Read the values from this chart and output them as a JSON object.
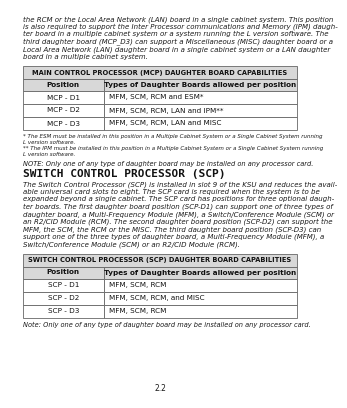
{
  "bg_color": "#ffffff",
  "text_color": "#1a1a1a",
  "body_text_1": [
    "the RCM or the Local Area Network (LAN) board in a single cabinet system. This position",
    "is also required to support the Inter Processor communications and Memory (IPM) daugh-",
    "ter board in a multiple cabinet system or a system running the L version software. The",
    "third daughter board (MCP_D3) can support a Miscellaneous (MISC) daughter board or a",
    "Local Area Network (LAN) daughter board in a single cabinet system or a LAN daughter",
    "board in a multiple cabinet system."
  ],
  "table1_title": "MAIN CONTROL PROCESSOR (MCP) DAUGHTER BOARD CAPABILITIES",
  "table1_col1_header": "Position",
  "table1_col2_header": "Types of Daughter Boards allowed per position",
  "table1_rows": [
    [
      "MCP - D1",
      "MFM, SCM, RCM and ESM*"
    ],
    [
      "MCP - D2",
      "MFM, SCM, RCM, LAN and IPM**"
    ],
    [
      "MCP - D3",
      "MFM, SCM, RCM, LAN and MISC"
    ]
  ],
  "footnote1": [
    "* The ESM must be installed in this position in a Multiple Cabinet System or a Single Cabinet System running",
    "L version software.",
    "** The IPM must be installed in this position in a Multiple Cabinet System or a Single Cabinet System running",
    "L version software."
  ],
  "note1": "NOTE: Only one of any type of daughter board may be installed on any processor card.",
  "section_title": "SWITCH CONTROL PROCESSOR (SCP)",
  "body_text_2": [
    "The Switch Control Processor (SCP) is installed in slot 9 of the KSU and reduces the avail-",
    "able universal card slots to eight. The SCP card is required when the system is to be",
    "expanded beyond a single cabinet. The SCP card has positions for three optional daugh-",
    "ter boards. The first daughter board position (SCP-D1) can support one of three types of",
    "daughter board, a Multi-Frequency Module (MFM), a Switch/Conference Module (SCM) or",
    "an R2/CID Module (RCM). The second daughter board position (SCP-D2) can support the",
    "MFM, the SCM, the RCM or the MISC. The third daughter board position (SCP-D3) can",
    "support one of the three types of daughter board, a Multi-Frequency Module (MFM), a",
    "Switch/Conference Module (SCM) or an R2/CID Module (RCM)."
  ],
  "table2_title": "SWITCH CONTROL PROCESSOR (SCP) DAUGHTER BOARD CAPABILITIES",
  "table2_col1_header": "Position",
  "table2_col2_header": "Types of Daughter Boards allowed per position",
  "table2_rows": [
    [
      "SCP - D1",
      "MFM, SCM, RCM"
    ],
    [
      "SCP - D2",
      "MFM, SCM, RCM, and MISC"
    ],
    [
      "SCP - D3",
      "MFM, SCM, RCM"
    ]
  ],
  "note2": "Note: Only one of any type of daughter board may be installed on any processor card.",
  "page_number": "2.2",
  "table_header_bg": "#d8d8d8",
  "table_title_bg": "#d8d8d8",
  "table_border_color": "#666666",
  "table_row_bg": "#ffffff"
}
